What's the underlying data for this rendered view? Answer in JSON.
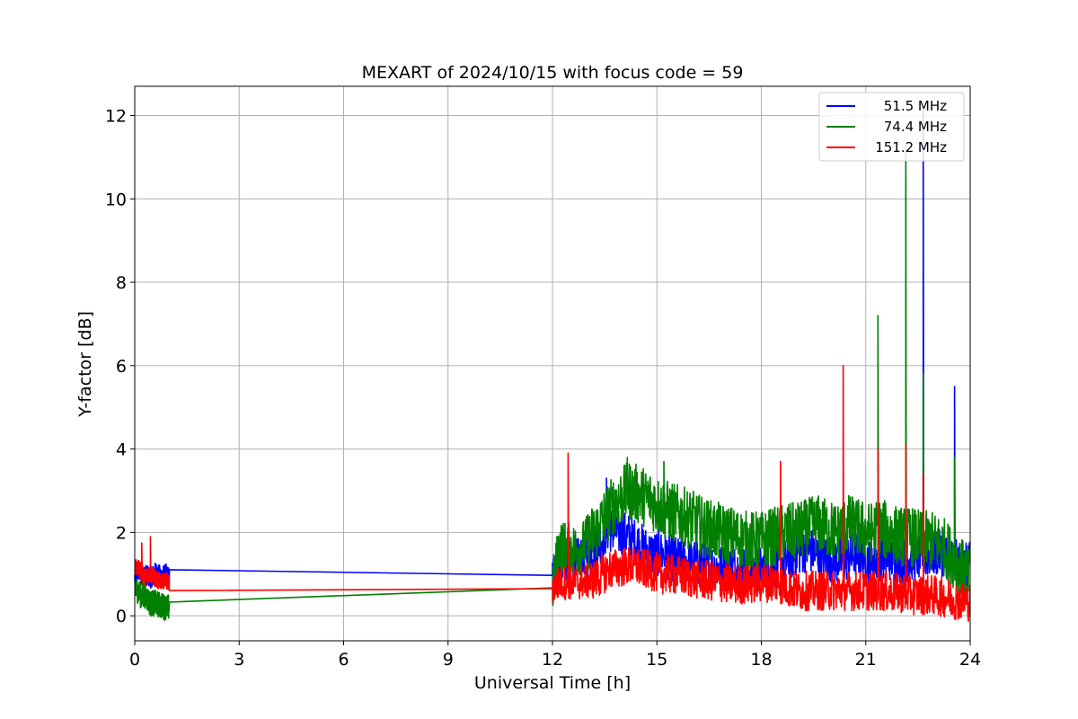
{
  "chart_data": {
    "type": "line",
    "title": "MEXART of 2024/10/15 with focus code = 59",
    "xlabel": "Universal Time [h]",
    "ylabel": "Y-factor [dB]",
    "xlim": [
      0,
      24
    ],
    "ylim": [
      -0.6,
      12.7
    ],
    "xticks": [
      0,
      3,
      6,
      9,
      12,
      15,
      18,
      21,
      24
    ],
    "yticks": [
      0,
      2,
      4,
      6,
      8,
      10,
      12
    ],
    "grid": true,
    "legend_position": "top-right",
    "series": [
      {
        "name": "51.5 MHz",
        "color": "#0000ff",
        "x": [
          0,
          0.1,
          0.2,
          0.3,
          0.45,
          0.6,
          0.75,
          0.9,
          1.0,
          12.0,
          12.2,
          12.5,
          12.8,
          13.0,
          13.3,
          13.6,
          13.9,
          14.2,
          14.5,
          14.8,
          15.1,
          15.4,
          15.7,
          16.0,
          16.4,
          16.8,
          17.2,
          17.6,
          18.0,
          18.4,
          18.7,
          19.0,
          19.3,
          19.6,
          19.9,
          20.2,
          20.5,
          20.8,
          21.1,
          21.4,
          21.7,
          22.0,
          22.3,
          22.6,
          22.9,
          23.2,
          23.5,
          23.8,
          24.0
        ],
        "y": [
          0.9,
          1.1,
          0.95,
          1.0,
          0.9,
          1.05,
          0.95,
          1.0,
          0.9,
          0.97,
          1.3,
          1.3,
          1.4,
          1.5,
          1.7,
          2.1,
          2.0,
          1.9,
          1.7,
          1.5,
          1.5,
          1.4,
          1.3,
          1.3,
          1.2,
          1.15,
          1.15,
          1.1,
          1.1,
          1.2,
          1.3,
          1.5,
          1.6,
          1.5,
          1.4,
          1.3,
          1.4,
          1.5,
          1.3,
          1.4,
          1.4,
          1.3,
          1.4,
          1.4,
          1.5,
          1.5,
          1.3,
          1.2,
          1.2
        ]
      },
      {
        "name": "74.4 MHz",
        "color": "#008000",
        "x": [
          0,
          0.1,
          0.2,
          0.3,
          0.45,
          0.6,
          0.75,
          0.9,
          1.0,
          12.0,
          12.2,
          12.5,
          12.8,
          13.0,
          13.3,
          13.6,
          13.9,
          14.2,
          14.5,
          14.8,
          15.1,
          15.4,
          15.7,
          16.0,
          16.4,
          16.8,
          17.2,
          17.6,
          18.0,
          18.4,
          18.7,
          19.0,
          19.3,
          19.6,
          19.9,
          20.2,
          20.5,
          20.8,
          21.1,
          21.4,
          21.7,
          22.0,
          22.3,
          22.6,
          22.9,
          23.2,
          23.5,
          23.8,
          24.0
        ],
        "y": [
          0.65,
          0.6,
          0.45,
          0.5,
          0.3,
          0.3,
          0.25,
          0.2,
          0.2,
          0.67,
          1.7,
          1.6,
          1.6,
          1.8,
          2.1,
          2.5,
          2.8,
          3.0,
          2.9,
          2.8,
          2.6,
          2.5,
          2.4,
          2.3,
          2.1,
          2.0,
          1.9,
          1.8,
          1.8,
          1.9,
          2.0,
          2.0,
          2.1,
          2.2,
          2.1,
          2.0,
          2.2,
          2.1,
          2.0,
          2.1,
          2.0,
          1.9,
          1.9,
          1.8,
          1.8,
          1.7,
          1.4,
          1.1,
          0.9
        ]
      },
      {
        "name": "151.2 MHz",
        "color": "#ff0000",
        "x": [
          0,
          0.1,
          0.2,
          0.3,
          0.45,
          0.6,
          0.75,
          0.9,
          1.0,
          12.0,
          12.2,
          12.5,
          12.8,
          13.0,
          13.3,
          13.6,
          13.9,
          14.2,
          14.5,
          14.8,
          15.1,
          15.4,
          15.7,
          16.0,
          16.4,
          16.8,
          17.2,
          17.6,
          18.0,
          18.4,
          18.7,
          19.0,
          19.3,
          19.6,
          19.9,
          20.2,
          20.5,
          20.8,
          21.1,
          21.4,
          21.7,
          22.0,
          22.3,
          22.6,
          22.9,
          23.2,
          23.5,
          23.8,
          24.0
        ],
        "y": [
          1.1,
          1.2,
          1.0,
          0.9,
          1.0,
          0.9,
          0.8,
          0.85,
          0.75,
          0.65,
          0.8,
          0.8,
          0.8,
          0.85,
          0.9,
          1.1,
          1.15,
          1.2,
          1.15,
          1.1,
          1.0,
          1.0,
          0.95,
          0.9,
          0.85,
          0.8,
          0.75,
          0.75,
          0.8,
          0.8,
          0.7,
          0.6,
          0.6,
          0.6,
          0.6,
          0.6,
          0.6,
          0.6,
          0.6,
          0.6,
          0.55,
          0.55,
          0.5,
          0.5,
          0.5,
          0.45,
          0.4,
          0.35,
          0.35
        ]
      }
    ],
    "spikes": [
      {
        "series": "51.5 MHz",
        "x": 22.65,
        "y": 12.2
      },
      {
        "series": "51.5 MHz",
        "x": 23.55,
        "y": 5.5
      },
      {
        "series": "51.5 MHz",
        "x": 13.55,
        "y": 3.3
      },
      {
        "series": "74.4 MHz",
        "x": 21.35,
        "y": 7.2
      },
      {
        "series": "74.4 MHz",
        "x": 22.15,
        "y": 11.3
      },
      {
        "series": "74.4 MHz",
        "x": 22.65,
        "y": 5.8
      },
      {
        "series": "74.4 MHz",
        "x": 23.55,
        "y": 3.8
      },
      {
        "series": "74.4 MHz",
        "x": 14.15,
        "y": 3.8
      },
      {
        "series": "74.4 MHz",
        "x": 15.2,
        "y": 3.7
      },
      {
        "series": "151.2 MHz",
        "x": 0.45,
        "y": 1.9
      },
      {
        "series": "151.2 MHz",
        "x": 0.2,
        "y": 1.75
      },
      {
        "series": "151.2 MHz",
        "x": 12.45,
        "y": 3.9
      },
      {
        "series": "151.2 MHz",
        "x": 18.55,
        "y": 3.7
      },
      {
        "series": "151.2 MHz",
        "x": 20.35,
        "y": 6.0
      },
      {
        "series": "151.2 MHz",
        "x": 21.35,
        "y": 4.0
      },
      {
        "series": "151.2 MHz",
        "x": 22.15,
        "y": 4.1
      },
      {
        "series": "151.2 MHz",
        "x": 22.65,
        "y": 3.4
      }
    ]
  }
}
